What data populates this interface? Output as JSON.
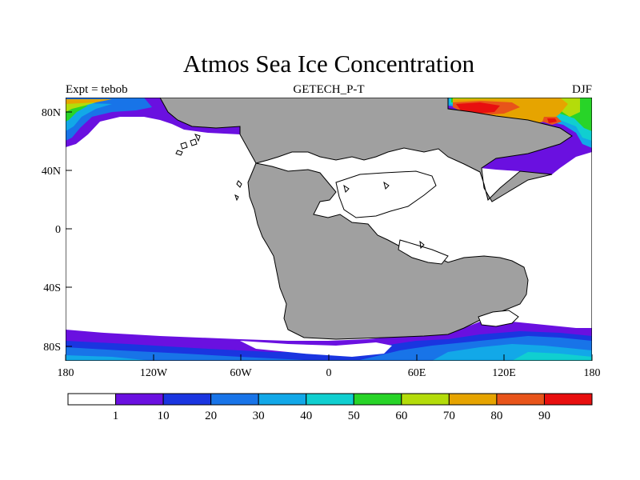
{
  "map": {
    "title": "Atmos Sea Ice Concentration",
    "subtitle": "GETECH_P-T",
    "left_label": "Expt = tebob",
    "right_label": "DJF",
    "lat_ticks": [
      "80N",
      "40N",
      "0",
      "40S",
      "80S"
    ],
    "lon_ticks": [
      "180",
      "120W",
      "60W",
      "0",
      "60E",
      "120E",
      "180"
    ]
  },
  "colorbar": {
    "colors": [
      "#ffffff",
      "#6a10e0",
      "#1a35e0",
      "#1874e8",
      "#12a8e8",
      "#10cfd0",
      "#28d428",
      "#b4dc0a",
      "#e6a400",
      "#e8541a",
      "#e80f0f"
    ],
    "labels": [
      "1",
      "10",
      "20",
      "30",
      "40",
      "50",
      "60",
      "70",
      "80",
      "90"
    ]
  }
}
